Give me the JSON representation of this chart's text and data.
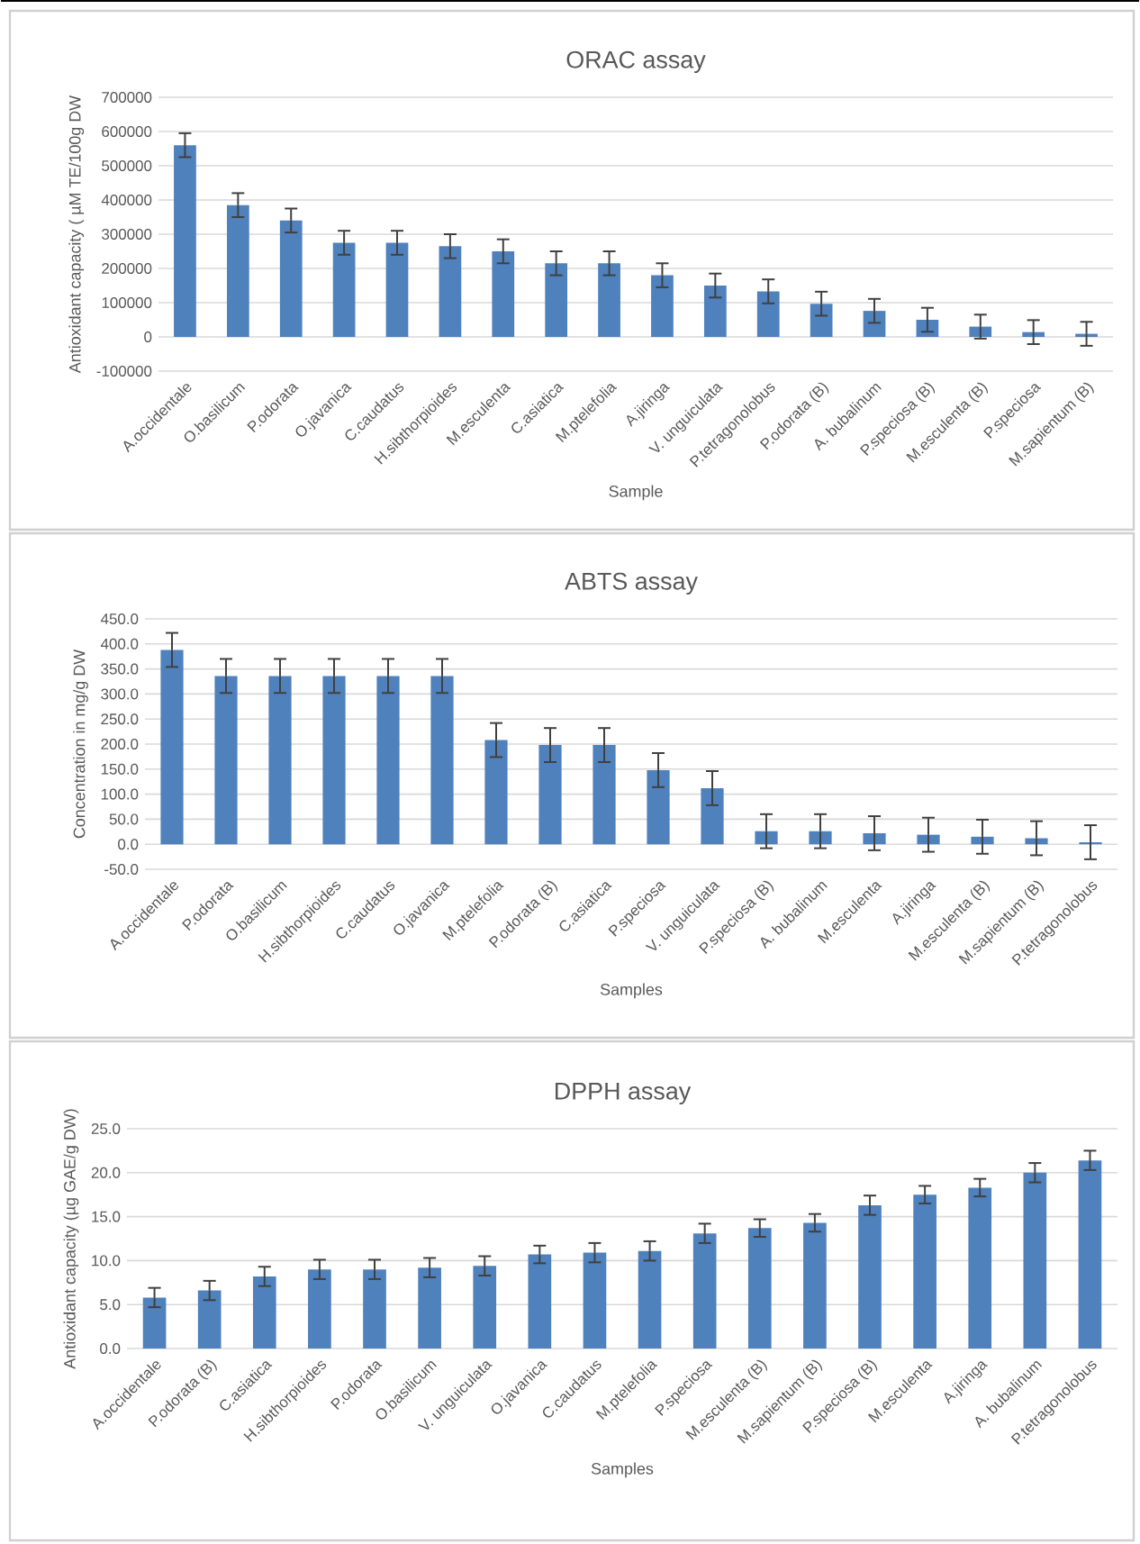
{
  "chart_data": [
    {
      "type": "bar",
      "title": "ORAC assay",
      "xlabel": "Sample",
      "ylabel": "Antioxidant capacity ( µM TE/100g DW",
      "color": "#4f81bd",
      "grid": "y",
      "categories": [
        "A.occidentale",
        "O.basilicum",
        "P.odorata",
        "O.javanica",
        "C.caudatus",
        "H.sibthorpioides",
        "M.esculenta",
        "C.asiatica",
        "M.ptelefolia",
        "A.jiringa",
        "V. unguiculata",
        "P.tetragonolobus",
        "P.odorata (B)",
        "A. bubalinum",
        "P.speciosa (B)",
        "M.esculenta (B)",
        "P.speciosa",
        "M.sapientum (B)"
      ],
      "values": [
        560000,
        385000,
        340000,
        275000,
        275000,
        265000,
        250000,
        215000,
        215000,
        180000,
        150000,
        133000,
        97000,
        76000,
        50000,
        30000,
        14000,
        9000
      ],
      "errors": [
        35000,
        35000,
        35000,
        35000,
        35000,
        35000,
        35000,
        35000,
        35000,
        35000,
        35000,
        35000,
        35000,
        35000,
        35000,
        35000,
        35000,
        35000
      ],
      "ylim": [
        -100000,
        700000
      ],
      "yticks": [
        -100000,
        0,
        100000,
        200000,
        300000,
        400000,
        500000,
        600000,
        700000
      ]
    },
    {
      "type": "bar",
      "title": "ABTS assay",
      "xlabel": "Samples",
      "ylabel": "Concentration in mg/g DW",
      "color": "#4f81bd",
      "grid": "y",
      "categories": [
        "A.occidentale",
        "P.odorata",
        "O.basilicum",
        "H.sibthorpioides",
        "C.caudatus",
        "O.javanica",
        "M.ptelefolia",
        "P.odorata (B)",
        "C.asiatica",
        "P.speciosa",
        "V. unguiculata",
        "P.speciosa (B)",
        "A. bubalinum",
        "M.esculenta",
        "A.jiringa",
        "M.esculenta (B)",
        "M.sapientum (B)",
        "P.tetragonolobus"
      ],
      "values": [
        388,
        336,
        336,
        336,
        336,
        336,
        208,
        198,
        198,
        148,
        112,
        26,
        26,
        22,
        19,
        15,
        12,
        4
      ],
      "errors": [
        34,
        34,
        34,
        34,
        34,
        34,
        34,
        34,
        34,
        34,
        34,
        34,
        34,
        34,
        34,
        34,
        34,
        34
      ],
      "ylim": [
        -50,
        450
      ],
      "yticks": [
        {
          "value": -50,
          "label": "-50.0"
        },
        {
          "value": 0,
          "label": "0.0"
        },
        {
          "value": 50,
          "label": "50.0"
        },
        {
          "value": 100,
          "label": "100.0"
        },
        {
          "value": 150,
          "label": "150.0"
        },
        {
          "value": 200,
          "label": "200.0"
        },
        {
          "value": 250,
          "label": "250.0"
        },
        {
          "value": 300,
          "label": "300.0"
        },
        {
          "value": 350,
          "label": "350.0"
        },
        {
          "value": 400,
          "label": "400.0"
        },
        {
          "value": 450,
          "label": "450.0"
        }
      ]
    },
    {
      "type": "bar",
      "title": "DPPH assay",
      "xlabel": "Samples",
      "ylabel": "Antioxidant capacity (µg GAE/g  DW)",
      "color": "#4f81bd",
      "grid": "y",
      "categories": [
        "A.occidentale",
        "P.odorata (B)",
        "C.asiatica",
        "H.sibthorpioides",
        "P.odorata",
        "O.basilicum",
        "V. unguiculata",
        "O.javanica",
        "C.caudatus",
        "M.ptelefolia",
        "P.speciosa",
        "M.esculenta (B)",
        "M.sapientum (B)",
        "P.speciosa (B)",
        "M.esculenta",
        "A.jiringa",
        "A. bubalinum",
        "P.tetragonolobus"
      ],
      "values": [
        5.8,
        6.6,
        8.2,
        9.0,
        9.0,
        9.2,
        9.4,
        10.7,
        10.9,
        11.1,
        13.1,
        13.7,
        14.3,
        16.3,
        17.5,
        18.3,
        20.0,
        21.4
      ],
      "errors": [
        1.1,
        1.1,
        1.1,
        1.1,
        1.1,
        1.1,
        1.1,
        1.0,
        1.1,
        1.1,
        1.1,
        1.0,
        1.0,
        1.1,
        1.0,
        1.0,
        1.1,
        1.1
      ],
      "ylim": [
        0,
        25
      ],
      "yticks": [
        {
          "value": 0,
          "label": "0.0"
        },
        {
          "value": 5,
          "label": "5.0"
        },
        {
          "value": 10,
          "label": "10.0"
        },
        {
          "value": 15,
          "label": "15.0"
        },
        {
          "value": 20,
          "label": "20.0"
        },
        {
          "value": 25,
          "label": "25.0"
        }
      ]
    }
  ]
}
